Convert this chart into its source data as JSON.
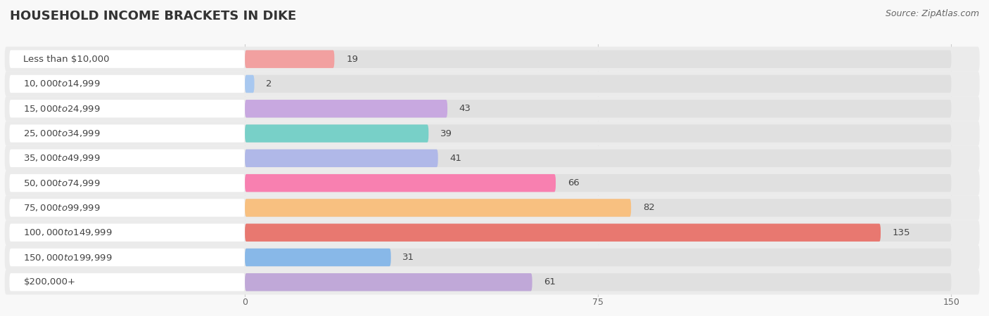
{
  "title": "HOUSEHOLD INCOME BRACKETS IN DIKE",
  "source": "Source: ZipAtlas.com",
  "categories": [
    "Less than $10,000",
    "$10,000 to $14,999",
    "$15,000 to $24,999",
    "$25,000 to $34,999",
    "$35,000 to $49,999",
    "$50,000 to $74,999",
    "$75,000 to $99,999",
    "$100,000 to $149,999",
    "$150,000 to $199,999",
    "$200,000+"
  ],
  "values": [
    19,
    2,
    43,
    39,
    41,
    66,
    82,
    135,
    31,
    61
  ],
  "bar_colors": [
    "#f2a0a0",
    "#a8c8f0",
    "#c8a8e0",
    "#78d0c8",
    "#b0b8e8",
    "#f880b0",
    "#f8c080",
    "#e87870",
    "#88b8e8",
    "#c0a8d8"
  ],
  "xlim": [
    0,
    150
  ],
  "xticks": [
    0,
    75,
    150
  ],
  "bg_color": "#f8f8f8",
  "row_bg_odd": "#f0f0f0",
  "row_bg_even": "#fafafa",
  "pill_bg": "#e8e8e8",
  "title_fontsize": 13,
  "label_fontsize": 9.5,
  "value_fontsize": 9.5,
  "source_fontsize": 9
}
